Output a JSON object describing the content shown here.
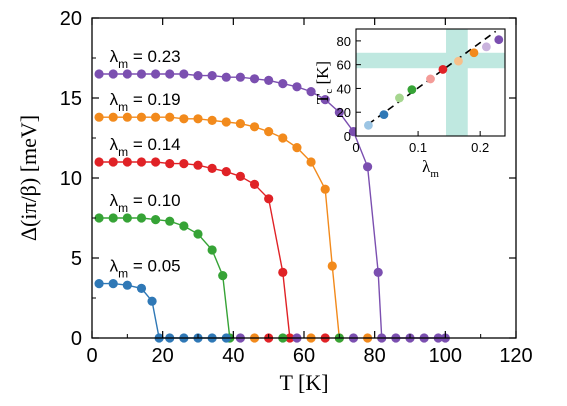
{
  "chart_data": [
    {
      "type": "line",
      "xlabel": "T [K]",
      "ylabel": "Δ(iπ/β) [meV]",
      "xlim": [
        0,
        120
      ],
      "ylim": [
        0,
        20
      ],
      "xticks": [
        0,
        20,
        40,
        60,
        80,
        100,
        120
      ],
      "yticks": [
        0,
        5,
        10,
        15,
        20
      ],
      "grid": false,
      "series": [
        {
          "name": "λm = 0.23",
          "label_prefix": "λ",
          "label_sub": "m",
          "label_value": " = 0.23",
          "color": "#7b4fb0",
          "x": [
            2,
            6,
            10,
            14,
            18,
            22,
            26,
            30,
            34,
            38,
            42,
            46,
            50,
            54,
            58,
            62,
            66,
            70,
            74,
            78,
            81,
            82,
            86,
            90,
            94,
            98,
            100
          ],
          "y": [
            16.5,
            16.5,
            16.5,
            16.5,
            16.5,
            16.5,
            16.5,
            16.4,
            16.4,
            16.3,
            16.3,
            16.2,
            16.1,
            15.9,
            15.7,
            15.4,
            14.9,
            14.1,
            12.9,
            10.7,
            4.1,
            0,
            0,
            0,
            0,
            0,
            0
          ]
        },
        {
          "name": "λm = 0.19",
          "label_prefix": "λ",
          "label_sub": "m",
          "label_value": " = 0.19",
          "color": "#f28a1c",
          "x": [
            2,
            6,
            10,
            14,
            18,
            22,
            26,
            30,
            34,
            38,
            42,
            46,
            50,
            54,
            58,
            62,
            66,
            68,
            70
          ],
          "y": [
            13.8,
            13.8,
            13.8,
            13.8,
            13.8,
            13.8,
            13.7,
            13.7,
            13.6,
            13.5,
            13.4,
            13.2,
            12.9,
            12.5,
            11.9,
            11.0,
            9.3,
            4.5,
            0
          ]
        },
        {
          "name": "λm = 0.14",
          "label_prefix": "λ",
          "label_sub": "m",
          "label_value": " = 0.14",
          "color": "#e02226",
          "x": [
            2,
            6,
            10,
            14,
            18,
            22,
            26,
            30,
            34,
            38,
            42,
            46,
            50,
            54,
            56
          ],
          "y": [
            11.0,
            11.0,
            11.0,
            11.0,
            11.0,
            10.9,
            10.9,
            10.8,
            10.6,
            10.4,
            10.1,
            9.6,
            8.7,
            4.1,
            0
          ]
        },
        {
          "name": "λm = 0.10",
          "label_prefix": "λ",
          "label_sub": "m",
          "label_value": " = 0.10",
          "color": "#36a336",
          "x": [
            2,
            6,
            10,
            14,
            18,
            22,
            26,
            30,
            34,
            37,
            39
          ],
          "y": [
            7.5,
            7.5,
            7.5,
            7.5,
            7.4,
            7.3,
            7.0,
            6.5,
            5.5,
            3.9,
            0
          ]
        },
        {
          "name": "λm = 0.05",
          "label_prefix": "λ",
          "label_sub": "m",
          "label_value": " = 0.05",
          "color": "#2f78b6",
          "x": [
            2,
            6,
            10,
            14,
            17,
            19,
            22,
            26,
            30,
            34,
            38
          ],
          "y": [
            3.4,
            3.4,
            3.3,
            3.1,
            2.3,
            0,
            0,
            0,
            0,
            0,
            0
          ]
        }
      ],
      "zero_points_x": [
        42,
        46,
        50,
        54,
        58,
        62,
        66,
        70,
        74,
        78
      ]
    },
    {
      "type": "scatter",
      "inset": true,
      "xlabel": "λm",
      "xlabel_main": "λ",
      "xlabel_sub": "m",
      "ylabel": "Tc [K]",
      "ylabel_main": "T",
      "ylabel_sub": "c",
      "ylabel_unit": " [K]",
      "xlim": [
        0,
        0.24
      ],
      "ylim": [
        0,
        90
      ],
      "xticks": [
        "0",
        "0.1",
        "0.2"
      ],
      "xtick_values": [
        0,
        0.1,
        0.2
      ],
      "yticks": [
        0,
        20,
        40,
        60,
        80
      ],
      "bands": {
        "color": "#bfe8e0",
        "horizontal": [
          57,
          70
        ],
        "vertical": [
          0.145,
          0.18
        ]
      },
      "dashed_line": {
        "x": [
          0.02,
          0.225
        ],
        "y": [
          10,
          88
        ]
      },
      "points": [
        {
          "x": 0.02,
          "y": 9,
          "color": "#9cc5e4"
        },
        {
          "x": 0.045,
          "y": 18,
          "color": "#2f78b6"
        },
        {
          "x": 0.07,
          "y": 32,
          "color": "#a6d68f"
        },
        {
          "x": 0.09,
          "y": 39,
          "color": "#36a336"
        },
        {
          "x": 0.12,
          "y": 48,
          "color": "#f49c98"
        },
        {
          "x": 0.14,
          "y": 56,
          "color": "#e02226"
        },
        {
          "x": 0.165,
          "y": 63,
          "color": "#f7c08a"
        },
        {
          "x": 0.19,
          "y": 70,
          "color": "#f28a1c"
        },
        {
          "x": 0.21,
          "y": 75,
          "color": "#c9b3dd"
        },
        {
          "x": 0.23,
          "y": 81,
          "color": "#7b4fb0"
        }
      ]
    }
  ]
}
